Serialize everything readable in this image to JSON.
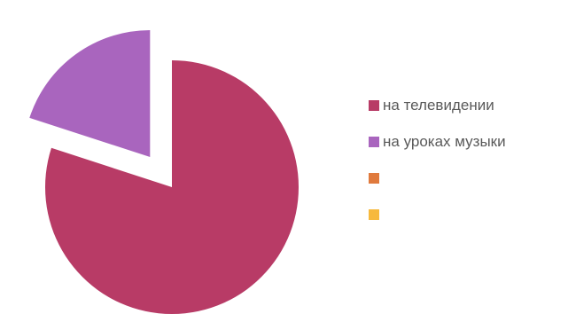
{
  "chart_data": {
    "type": "pie",
    "title": "",
    "slices": [
      {
        "label": "на телевидении",
        "value": 80,
        "color": "#b83b66"
      },
      {
        "label": "на уроках музыки",
        "value": 20,
        "color": "#a965be"
      },
      {
        "label": "",
        "value": 0,
        "color": "#e07a3d"
      },
      {
        "label": "",
        "value": 0,
        "color": "#f7b93c"
      }
    ],
    "exploded": [
      "на уроках музыки"
    ],
    "legend_position": "right"
  }
}
